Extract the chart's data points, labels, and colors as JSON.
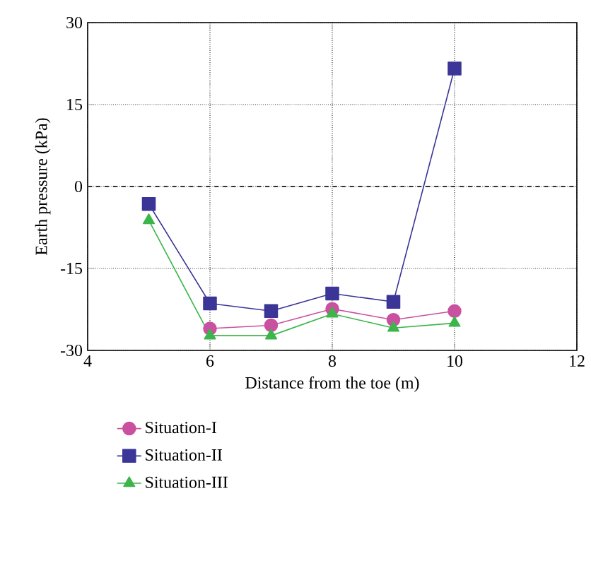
{
  "chart_data": {
    "type": "line",
    "xlabel": "Distance from the toe (m)",
    "ylabel": "Earth pressure (kPa)",
    "x": [
      5,
      6,
      7,
      8,
      9,
      10
    ],
    "series": [
      {
        "name": "Situation-I",
        "color": "#c9519f",
        "marker": "circle",
        "values": [
          null,
          -26.0,
          -25.4,
          -22.4,
          -24.4,
          -22.8
        ]
      },
      {
        "name": "Situation-II",
        "color": "#3a3596",
        "marker": "square",
        "values": [
          -3.2,
          -21.4,
          -22.8,
          -19.6,
          -21.1,
          21.6
        ]
      },
      {
        "name": "Situation-III",
        "color": "#3cb54a",
        "marker": "triangle",
        "values": [
          -6.2,
          -27.3,
          -27.3,
          -23.3,
          -25.9,
          -25.0
        ]
      }
    ],
    "xlim": [
      4,
      12
    ],
    "xticks": [
      4,
      6,
      8,
      10,
      12
    ],
    "ylim": [
      -30,
      30
    ],
    "yticks": [
      -30,
      -15,
      0,
      15,
      30
    ],
    "grid": true,
    "legend": "bottom",
    "line_style": "solid",
    "ref_lines": [
      {
        "axis": "y",
        "value": 0,
        "color": "#333333",
        "line_style": "dashed"
      }
    ]
  }
}
